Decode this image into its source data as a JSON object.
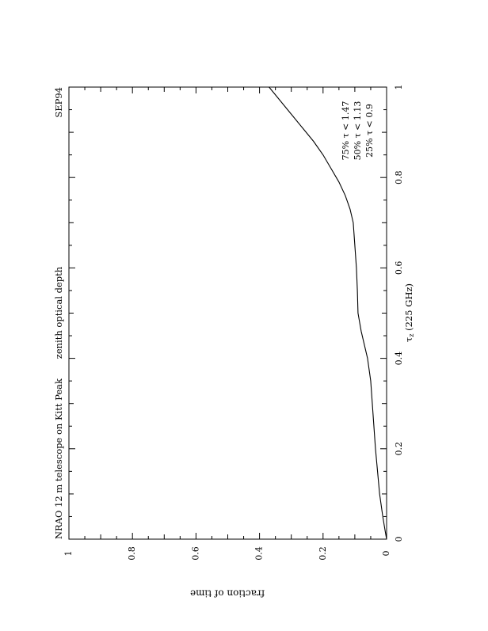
{
  "chart_data": {
    "type": "line",
    "title_left": "NRAO 12 m telescope on Kitt Peak",
    "title_center": "zenith optical depth",
    "title_right": "SEP94",
    "xlabel": "τz (225 GHz)",
    "xlabel_main": "τ",
    "xlabel_sub": "z",
    "xlabel_rest": " (225 GHz)",
    "ylabel": "fraction of time",
    "xlim": [
      0,
      1
    ],
    "ylim": [
      0,
      1
    ],
    "x_ticks": [
      "0",
      "0.2",
      "0.4",
      "0.6",
      "0.8",
      "1"
    ],
    "y_ticks": [
      "0",
      "0.2",
      "0.4",
      "0.6",
      "0.8",
      "1"
    ],
    "annotations": [
      "75% τ < 1.47",
      "50% τ < 1.13",
      "25% τ < 0.9"
    ],
    "series": [
      {
        "values": [
          [
            0.0,
            0.0
          ],
          [
            0.02,
            0.005
          ],
          [
            0.05,
            0.012
          ],
          [
            0.1,
            0.022
          ],
          [
            0.2,
            0.035
          ],
          [
            0.3,
            0.045
          ],
          [
            0.35,
            0.05
          ],
          [
            0.4,
            0.06
          ],
          [
            0.43,
            0.07
          ],
          [
            0.46,
            0.08
          ],
          [
            0.48,
            0.085
          ],
          [
            0.5,
            0.09
          ],
          [
            0.55,
            0.092
          ],
          [
            0.6,
            0.095
          ],
          [
            0.65,
            0.1
          ],
          [
            0.7,
            0.105
          ],
          [
            0.73,
            0.115
          ],
          [
            0.76,
            0.13
          ],
          [
            0.79,
            0.15
          ],
          [
            0.82,
            0.175
          ],
          [
            0.85,
            0.2
          ],
          [
            0.88,
            0.23
          ],
          [
            0.91,
            0.265
          ],
          [
            0.94,
            0.3
          ],
          [
            0.97,
            0.335
          ],
          [
            1.0,
            0.37
          ]
        ]
      }
    ]
  }
}
